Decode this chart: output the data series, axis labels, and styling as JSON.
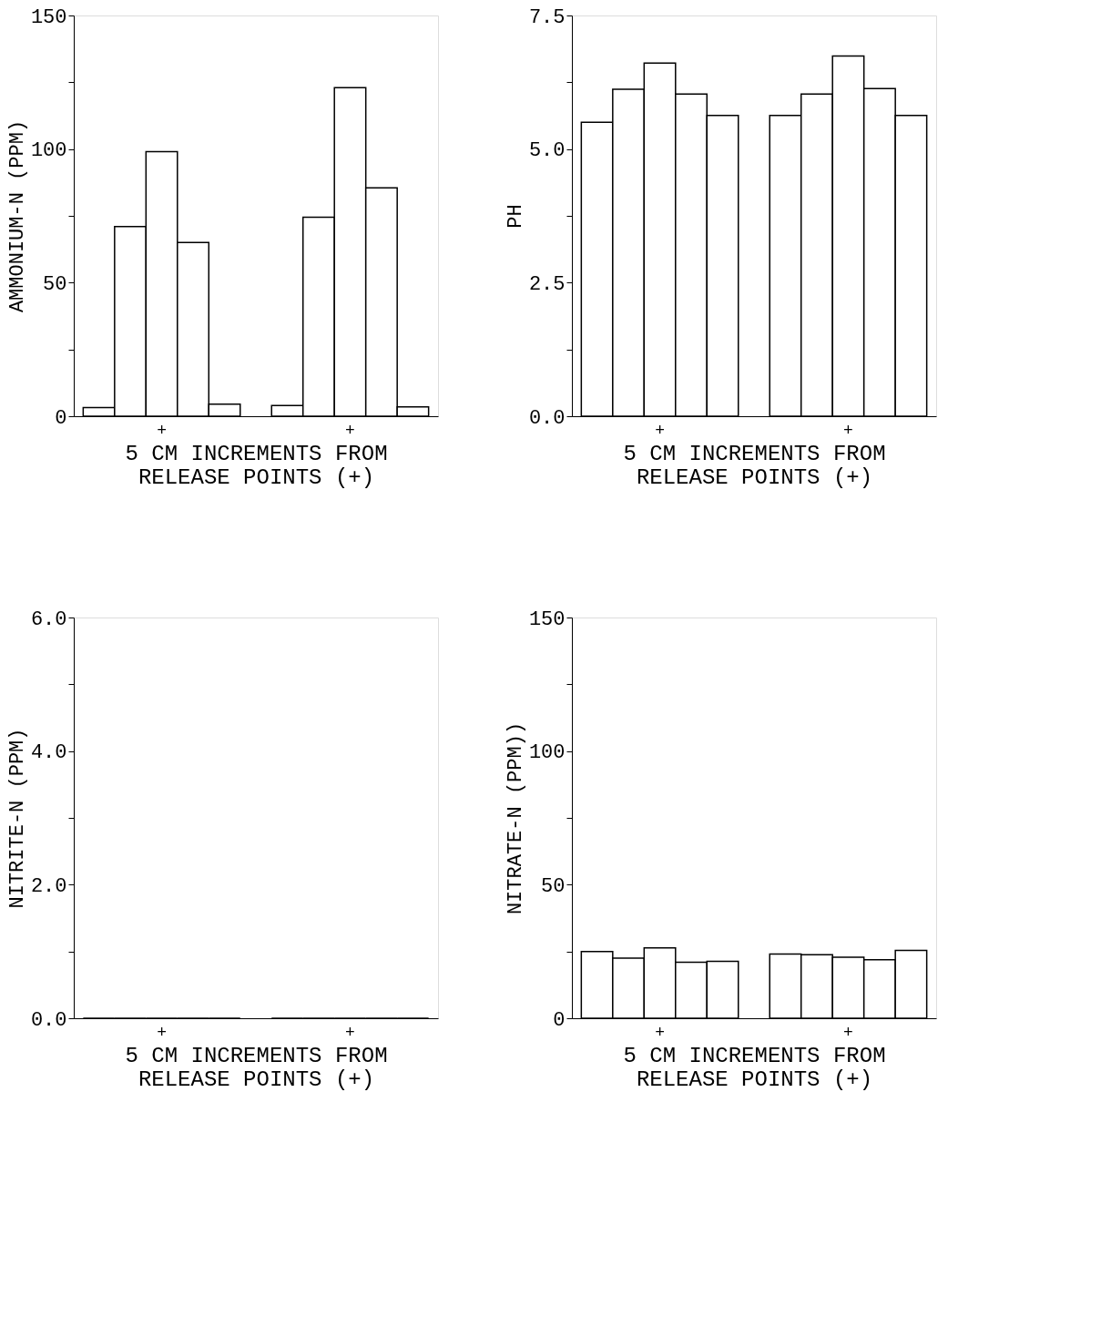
{
  "chart_data": [
    {
      "type": "bar",
      "ylabel": "AMMONIUM-N (PPM)",
      "xlabel": "5 CM INCREMENTS FROM RELEASE POINTS (+)",
      "categories": [
        null,
        null,
        "+",
        null,
        null,
        null,
        null,
        null,
        "+",
        null,
        null
      ],
      "values": [
        3.2,
        71,
        99,
        65,
        4.5,
        null,
        4,
        74.5,
        123,
        85.5,
        3.5
      ],
      "color": "#ffffff",
      "ylim": [
        0,
        150
      ],
      "yticks": [
        0,
        {
          "value": 25,
          "label": null
        },
        50,
        {
          "value": 75,
          "label": null
        },
        100,
        {
          "value": 125,
          "label": null
        },
        150
      ],
      "grid": false
    },
    {
      "type": "bar",
      "ylabel": "PH",
      "xlabel": "5 CM INCREMENTS FROM RELEASE POINTS (+)",
      "categories": [
        null,
        null,
        "+",
        null,
        null,
        null,
        null,
        null,
        "+",
        null,
        null
      ],
      "values": [
        5.5,
        6.12,
        6.61,
        6.03,
        5.63,
        null,
        5.63,
        6.03,
        6.74,
        6.13,
        5.63
      ],
      "color": "#ffffff",
      "ylim": [
        0,
        7.5
      ],
      "yticks": [
        {
          "value": 0,
          "label": "0.0"
        },
        {
          "value": 1.25,
          "label": null
        },
        2.5,
        {
          "value": 3.75,
          "label": null
        },
        {
          "value": 5,
          "label": "5.0"
        },
        {
          "value": 6.25,
          "label": null
        },
        7.5
      ],
      "grid": false
    },
    {
      "type": "bar",
      "ylabel": "NITRITE-N (PPM)",
      "xlabel": "5 CM INCREMENTS FROM RELEASE POINTS (+)",
      "categories": [
        null,
        null,
        "+",
        null,
        null,
        null,
        null,
        null,
        "+",
        null,
        null
      ],
      "values": [
        0,
        0,
        0,
        0,
        0,
        null,
        0,
        0,
        0,
        0,
        0
      ],
      "color": "#000000",
      "ylim": [
        0,
        6
      ],
      "yticks": [
        {
          "value": 0,
          "label": "0.0"
        },
        {
          "value": 1,
          "label": null
        },
        {
          "value": 2,
          "label": "2.0"
        },
        {
          "value": 3,
          "label": null
        },
        {
          "value": 4,
          "label": "4.0"
        },
        {
          "value": 5,
          "label": null
        },
        {
          "value": 6,
          "label": "6.0"
        }
      ],
      "grid": false
    },
    {
      "type": "bar",
      "ylabel": "NITRATE-N (PPM))",
      "xlabel": "5 CM INCREMENTS FROM RELEASE POINTS (+)",
      "categories": [
        null,
        null,
        "+",
        null,
        null,
        null,
        null,
        null,
        "+",
        null,
        null
      ],
      "values": [
        25,
        22.5,
        26.3,
        21,
        21.3,
        null,
        24,
        23.8,
        22.8,
        21.9,
        25.4
      ],
      "color": "#ffffff",
      "ylim": [
        0,
        150
      ],
      "yticks": [
        0,
        {
          "value": 25,
          "label": null
        },
        50,
        {
          "value": 75,
          "label": null
        },
        100,
        {
          "value": 125,
          "label": null
        },
        150
      ],
      "grid": false
    }
  ]
}
